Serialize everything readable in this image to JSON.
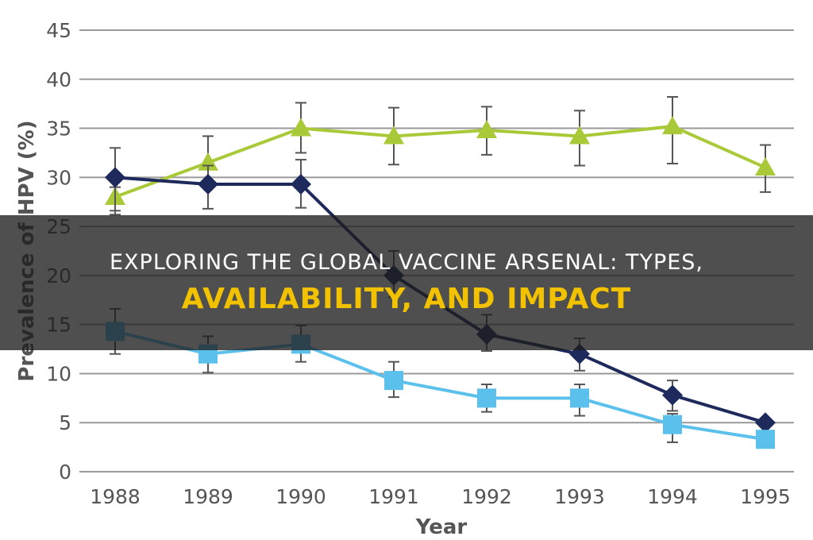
{
  "chart_data": {
    "type": "line",
    "x": [
      "1988",
      "1989",
      "1990",
      "1991",
      "1992",
      "1993",
      "1994",
      "1995"
    ],
    "ylim": [
      0,
      45
    ],
    "yticks": [
      0,
      5,
      10,
      15,
      20,
      25,
      30,
      35,
      40,
      45
    ],
    "ylabel": "Prevalence of HPV (%)",
    "xlabel": "Year",
    "grid": "horizontal",
    "series": [
      {
        "marker": "triangle",
        "color": "#a9c938",
        "values": [
          28.0,
          31.5,
          35.0,
          34.2,
          34.8,
          34.2,
          35.2,
          31.0
        ],
        "err_high": [
          29.0,
          34.2,
          37.6,
          37.1,
          37.2,
          36.8,
          38.2,
          33.3
        ],
        "err_low": [
          26.2,
          29.0,
          32.5,
          31.3,
          32.3,
          31.2,
          31.4,
          28.5
        ]
      },
      {
        "marker": "diamond",
        "color": "#1f2a5c",
        "values": [
          30.0,
          29.3,
          29.3,
          20.0,
          14.0,
          12.0,
          7.8,
          5.0
        ],
        "err_high": [
          33.0,
          31.2,
          31.8,
          22.5,
          16.0,
          13.6,
          9.3,
          5.4
        ],
        "err_low": [
          26.6,
          26.8,
          26.9,
          17.8,
          12.3,
          10.3,
          6.2,
          4.6
        ]
      },
      {
        "marker": "square",
        "color": "#5bc0eb",
        "values": [
          14.3,
          12.0,
          13.0,
          9.3,
          7.5,
          7.5,
          4.8,
          3.3
        ],
        "err_high": [
          16.6,
          13.8,
          14.9,
          11.2,
          8.9,
          8.9,
          5.9,
          3.7
        ],
        "err_low": [
          12.0,
          10.1,
          11.2,
          7.6,
          6.1,
          5.7,
          3.0,
          2.9
        ]
      }
    ]
  },
  "overlay": {
    "line1": "Exploring The Global Vaccine Arsenal: Types,",
    "line2": "Availability, And Impact"
  }
}
